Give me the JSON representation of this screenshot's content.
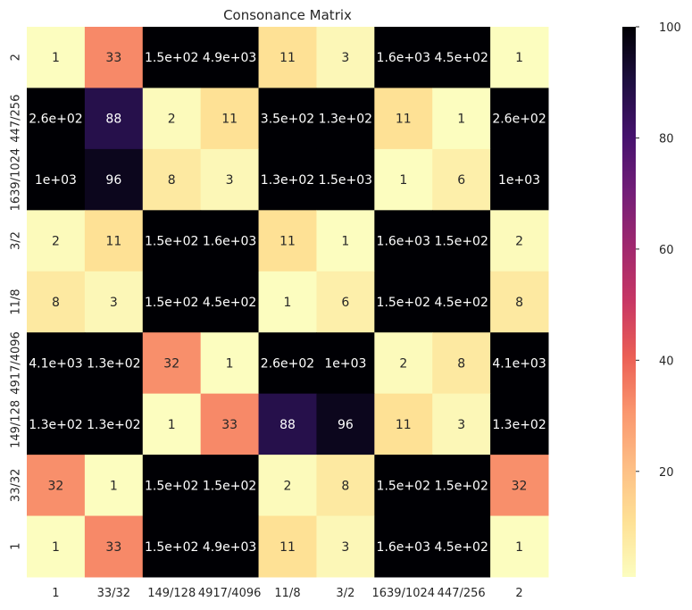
{
  "chart_data": {
    "type": "heatmap",
    "title": "Consonance Matrix",
    "xlabel": "",
    "ylabel": "",
    "x_labels": [
      "1",
      "33/32",
      "149/128",
      "4917/4096",
      "11/8",
      "3/2",
      "1639/1024",
      "447/256",
      "2"
    ],
    "y_labels": [
      "2",
      "447/256",
      "1639/1024",
      "3/2",
      "11/8",
      "4917/4096",
      "149/128",
      "33/32",
      "1"
    ],
    "values": [
      [
        1,
        33,
        150,
        4900,
        11,
        3,
        1600,
        450,
        1
      ],
      [
        260,
        88,
        2,
        11,
        350,
        130,
        11,
        1,
        260
      ],
      [
        1000,
        96,
        8,
        3,
        130,
        1500,
        1,
        6,
        1000
      ],
      [
        2,
        11,
        150,
        1600,
        11,
        1,
        1600,
        150,
        2
      ],
      [
        8,
        3,
        150,
        450,
        1,
        6,
        150,
        450,
        8
      ],
      [
        4100,
        130,
        32,
        1,
        260,
        1000,
        2,
        8,
        4100
      ],
      [
        130,
        130,
        1,
        33,
        88,
        96,
        11,
        3,
        130
      ],
      [
        32,
        1,
        150,
        150,
        2,
        8,
        150,
        150,
        32
      ],
      [
        1,
        33,
        150,
        4900,
        11,
        3,
        1600,
        450,
        1
      ]
    ],
    "annotations": [
      [
        "1",
        "33",
        "1.5e+02",
        "4.9e+03",
        "11",
        "3",
        "1.6e+03",
        "4.5e+02",
        "1"
      ],
      [
        "2.6e+02",
        "88",
        "2",
        "11",
        "3.5e+02",
        "1.3e+02",
        "11",
        "1",
        "2.6e+02"
      ],
      [
        "1e+03",
        "96",
        "8",
        "3",
        "1.3e+02",
        "1.5e+03",
        "1",
        "6",
        "1e+03"
      ],
      [
        "2",
        "11",
        "1.5e+02",
        "1.6e+03",
        "11",
        "1",
        "1.6e+03",
        "1.5e+02",
        "2"
      ],
      [
        "8",
        "3",
        "1.5e+02",
        "4.5e+02",
        "1",
        "6",
        "1.5e+02",
        "4.5e+02",
        "8"
      ],
      [
        "4.1e+03",
        "1.3e+02",
        "32",
        "1",
        "2.6e+02",
        "1e+03",
        "2",
        "8",
        "4.1e+03"
      ],
      [
        "1.3e+02",
        "1.3e+02",
        "1",
        "33",
        "88",
        "96",
        "11",
        "3",
        "1.3e+02"
      ],
      [
        "32",
        "1",
        "1.5e+02",
        "1.5e+02",
        "2",
        "8",
        "1.5e+02",
        "1.5e+02",
        "32"
      ],
      [
        "1",
        "33",
        "1.5e+02",
        "4.9e+03",
        "11",
        "3",
        "1.6e+03",
        "4.5e+02",
        "1"
      ]
    ],
    "colormap": "magma_r",
    "vmin": 1,
    "vmax": 100,
    "colorbar_ticks": [
      20,
      40,
      60,
      80,
      100
    ],
    "grid": false
  }
}
